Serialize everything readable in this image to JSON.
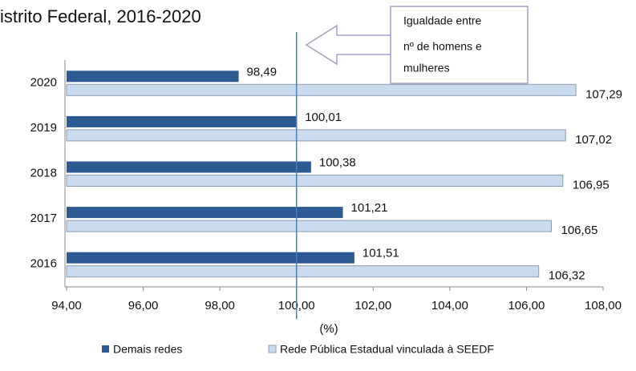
{
  "chart_data": {
    "type": "hbar",
    "title": "istrito Federal, 2016-2020",
    "xlabel": "(%)",
    "categories": [
      "2020",
      "2019",
      "2018",
      "2017",
      "2016"
    ],
    "series": [
      {
        "name": "Demais redes",
        "color": "#2e5a94",
        "values": [
          98.49,
          100.01,
          100.38,
          101.21,
          101.51
        ],
        "value_labels": [
          "98,49",
          "100,01",
          "100,38",
          "101,21",
          "101,51"
        ]
      },
      {
        "name": "Rede Pública Estadual vinculada à SEEDF",
        "color": "#c9dbef",
        "values": [
          107.29,
          107.02,
          106.95,
          106.65,
          106.32
        ],
        "value_labels": [
          "107,29",
          "107,02",
          "106,95",
          "106,65",
          "106,32"
        ]
      }
    ],
    "xlim": [
      94,
      108
    ],
    "xticks": [
      {
        "value": 94,
        "label": "94,00"
      },
      {
        "value": 96,
        "label": "96,00"
      },
      {
        "value": 98,
        "label": "98,00"
      },
      {
        "value": 100,
        "label": "100,00"
      },
      {
        "value": 102,
        "label": "102,00"
      },
      {
        "value": 104,
        "label": "104,00"
      },
      {
        "value": 106,
        "label": "106,00"
      },
      {
        "value": 108,
        "label": "108,00"
      }
    ],
    "reference_x": 100,
    "annotation": [
      "Igualdade entre",
      "nº de homens e",
      "mulheres"
    ]
  }
}
